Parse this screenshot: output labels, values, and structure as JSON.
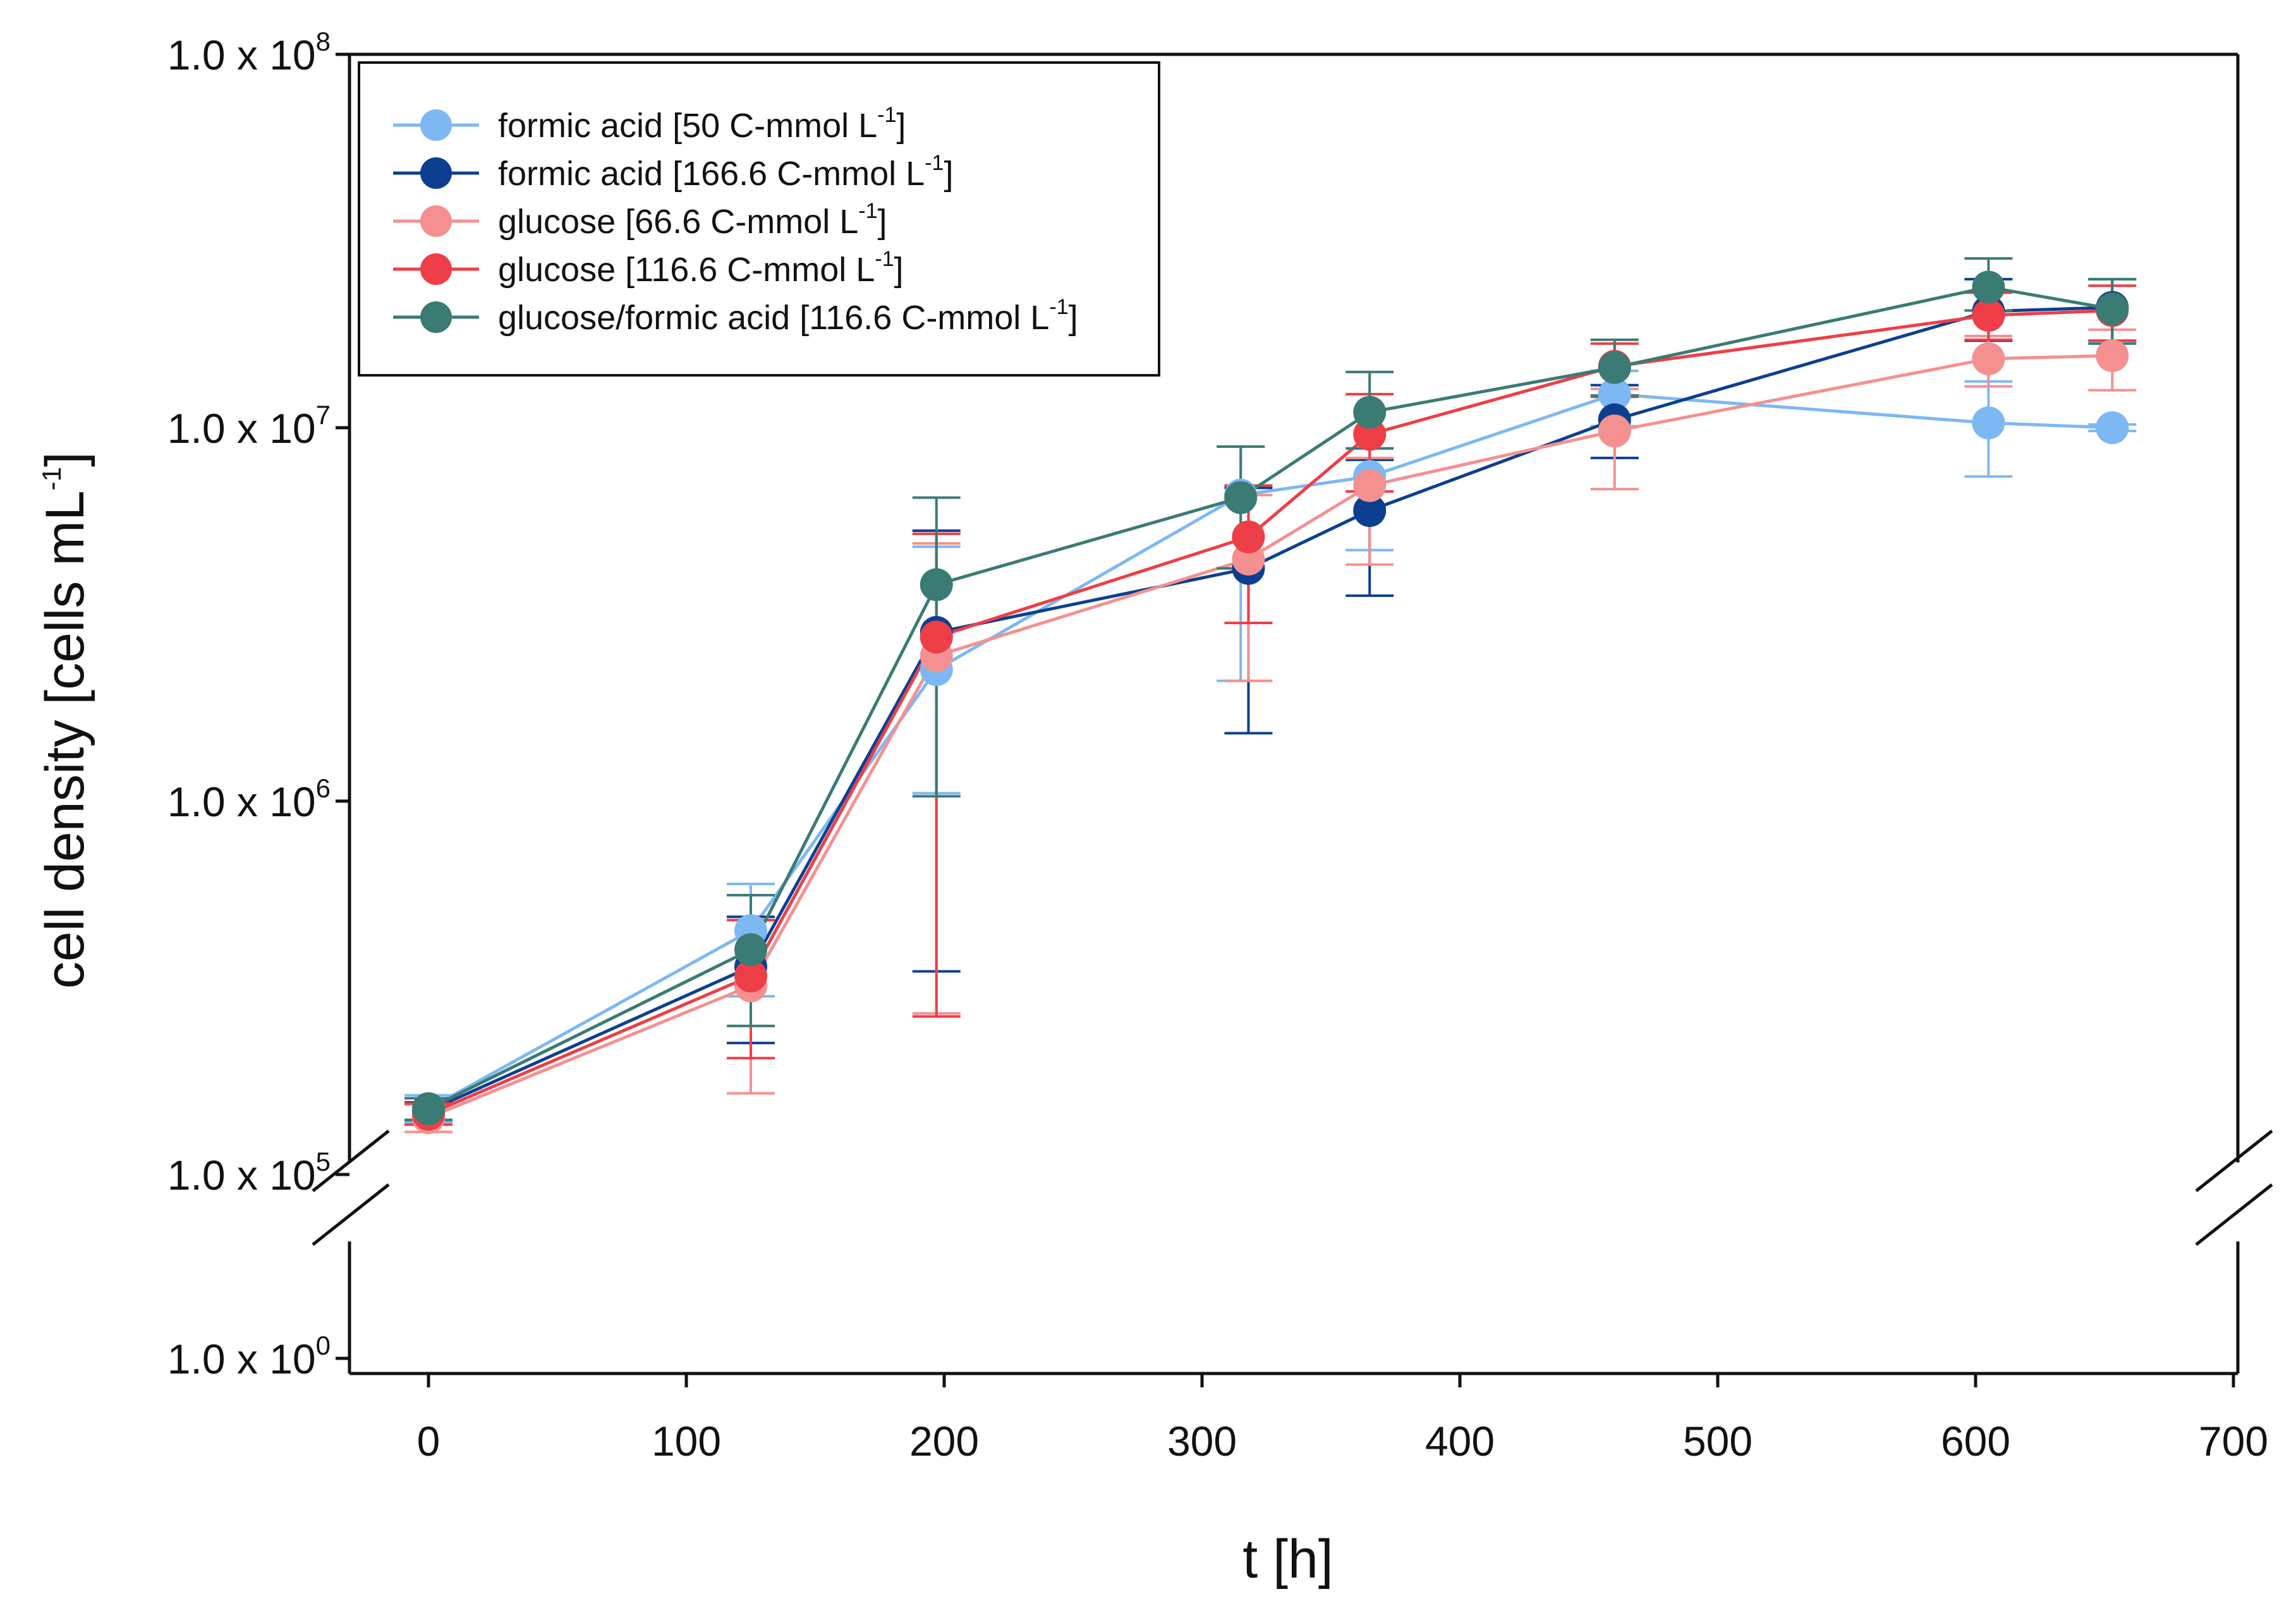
{
  "chart_data": {
    "type": "line",
    "xlabel": "t [h]",
    "ylabel": {
      "text": "cell density [cells mL",
      "exponent": "-1",
      "close": "]"
    },
    "xlim": [
      -30,
      700
    ],
    "x_ticks": [
      {
        "label": "0",
        "value": 0
      },
      {
        "label": "100",
        "value": 100
      },
      {
        "label": "200",
        "value": 200
      },
      {
        "label": "300",
        "value": 300
      },
      {
        "label": "400",
        "value": 400
      },
      {
        "label": "500",
        "value": 500
      },
      {
        "label": "600",
        "value": 600
      },
      {
        "label": "700",
        "value": 700
      }
    ],
    "y_scale": "log10 with axis break between 1.0 x 10^0 and 1.0 x 10^5",
    "ylim": [
      100000,
      100000000
    ],
    "y_ticks": [
      {
        "mantissa": "1.0 x 10",
        "exponent": "8",
        "value": 100000000
      },
      {
        "mantissa": "1.0 x 10",
        "exponent": "7",
        "value": 10000000
      },
      {
        "mantissa": "1.0 x 10",
        "exponent": "6",
        "value": 1000000
      },
      {
        "mantissa": "1.0 x 10",
        "exponent": "5",
        "value": 100000
      },
      {
        "mantissa": "1.0 x 10",
        "exponent": "0",
        "value": 1
      }
    ],
    "legend_position": "top-left",
    "series": [
      {
        "name": "formic acid [50 C-mmol L",
        "name_exp": "-1",
        "name_end": "]",
        "color": "#7db8f2",
        "x": [
          0,
          125,
          197,
          315,
          365,
          460,
          605,
          653
        ],
        "y": [
          150000,
          450000,
          2250000,
          6600000,
          7400000,
          12300000,
          10300000,
          10000000
        ],
        "err_low": [
          138000,
          300000,
          1050000,
          2100000,
          4700000,
          10100000,
          7400000,
          9800000
        ],
        "err_high": [
          163000,
          600000,
          4800000,
          8900000,
          8800000,
          14200000,
          13300000,
          10200000
        ]
      },
      {
        "name": "formic acid [166.6 C-mmol L",
        "name_exp": "-1",
        "name_end": "]",
        "color": "#0c3f8f",
        "x": [
          0,
          125,
          197,
          318,
          365,
          460,
          605,
          653
        ],
        "y": [
          148000,
          360000,
          2830000,
          4200000,
          6000000,
          10500000,
          20500000,
          21000000
        ],
        "err_low": [
          140000,
          225000,
          350000,
          1520000,
          3550000,
          8300000,
          17100000,
          17100000
        ],
        "err_high": [
          156000,
          490000,
          5300000,
          6900000,
          8200000,
          13000000,
          25000000,
          25000000
        ]
      },
      {
        "name": "glucose [66.6 C-mmol L",
        "name_exp": "-1",
        "name_end": "]",
        "color": "#f59090",
        "x": [
          0,
          125,
          197,
          318,
          365,
          460,
          605,
          653
        ],
        "y": [
          142000,
          320000,
          2450000,
          4450000,
          7000000,
          9800000,
          15300000,
          15600000
        ],
        "err_low": [
          130000,
          165000,
          270000,
          2100000,
          4300000,
          6850000,
          12900000,
          12600000
        ],
        "err_high": [
          154000,
          480000,
          4900000,
          6600000,
          8300000,
          12700000,
          17600000,
          18300000
        ]
      },
      {
        "name": "glucose [116.6 C-mmol L",
        "name_exp": "-1",
        "name_end": "]",
        "color": "#ee3e47",
        "x": [
          0,
          125,
          197,
          318,
          365,
          460,
          605,
          653
        ],
        "y": [
          145000,
          340000,
          2750000,
          5100000,
          9600000,
          14600000,
          20000000,
          20600000
        ],
        "err_low": [
          136000,
          205000,
          265000,
          3000000,
          6750000,
          12100000,
          17200000,
          17100000
        ],
        "err_high": [
          155000,
          480000,
          5200000,
          7000000,
          12300000,
          16800000,
          23000000,
          24000000
        ]
      },
      {
        "name": "glucose/formic acid [116.6 C-mmol L",
        "name_exp": "-1",
        "name_end": "]",
        "color": "#3a7b74",
        "x": [
          0,
          125,
          197,
          315,
          365,
          460,
          605,
          653
        ],
        "y": [
          150000,
          400000,
          3800000,
          6500000,
          11000000,
          14500000,
          23800000,
          20800000
        ],
        "err_low": [
          140000,
          250000,
          1030000,
          4200000,
          8800000,
          12200000,
          20600000,
          16800000
        ],
        "err_high": [
          160000,
          560000,
          6500000,
          8900000,
          14100000,
          17200000,
          28400000,
          25000000
        ]
      }
    ]
  }
}
